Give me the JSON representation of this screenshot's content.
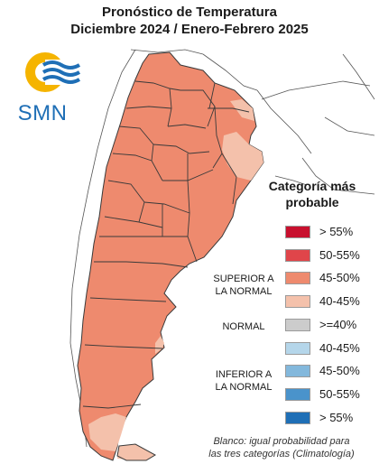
{
  "title": {
    "line1": "Pronóstico de Temperatura",
    "line2": "Diciembre 2024 / Enero-Febrero 2025"
  },
  "logo": {
    "text": "SMN",
    "icon": "smn-sun-wave-logo"
  },
  "legend": {
    "title_line1": "Categoría más",
    "title_line2": "probable",
    "items": [
      {
        "label": "> 55%",
        "color": "#c8102e",
        "group": "superior"
      },
      {
        "label": "50-55%",
        "color": "#e0454a",
        "group": "superior"
      },
      {
        "label": "45-50%",
        "color": "#ee8a6e",
        "group": "superior"
      },
      {
        "label": "40-45%",
        "color": "#f4c1ab",
        "group": "superior"
      },
      {
        "label": ">=40%",
        "color": "#cccccc",
        "group": "normal"
      },
      {
        "label": "40-45%",
        "color": "#b5d6ea",
        "group": "inferior"
      },
      {
        "label": "45-50%",
        "color": "#83b8dc",
        "group": "inferior"
      },
      {
        "label": "50-55%",
        "color": "#4a93cb",
        "group": "inferior"
      },
      {
        "label": "> 55%",
        "color": "#1f6fb6",
        "group": "inferior"
      }
    ],
    "groups": {
      "superior": {
        "line1": "SUPERIOR A",
        "line2": "LA NORMAL"
      },
      "normal": {
        "line1": "NORMAL"
      },
      "inferior": {
        "line1": "INFERIOR A",
        "line2": "LA NORMAL"
      }
    }
  },
  "footnote": {
    "line1": "Blanco: igual probabilidad para",
    "line2": "las tres categorías (Climatología)"
  },
  "colors": {
    "dominant": "#ee8a6e",
    "light": "#f4c1ab",
    "border": "#3a3a3a"
  }
}
